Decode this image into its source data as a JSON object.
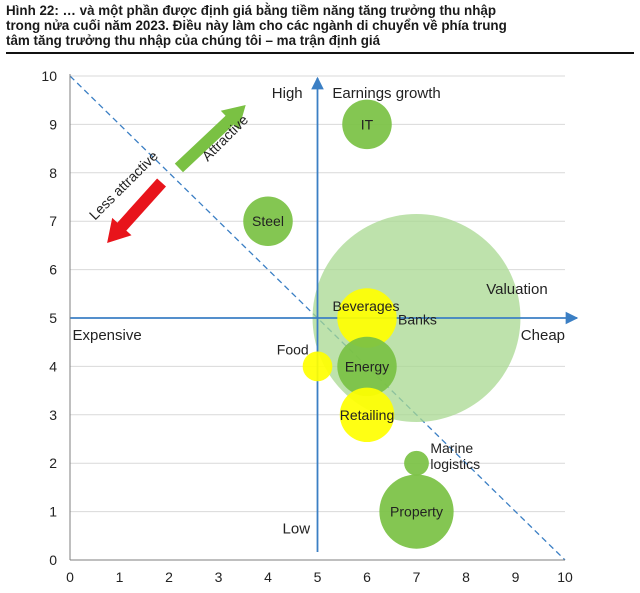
{
  "figure": {
    "title_lines": [
      "Hình 22: … và một phần được định giá bằng tiềm năng tăng trưởng thu nhập",
      "trong nửa cuối năm 2023. Điều này làm cho các ngành di chuyển về phía trung",
      "tâm tăng trưởng thu nhập của chúng tôi – ma trận định giá"
    ]
  },
  "chart_data": {
    "type": "scatter",
    "subtype": "bubble",
    "xlim": [
      0,
      10
    ],
    "ylim": [
      0,
      10
    ],
    "x_ticks": [
      0,
      1,
      2,
      3,
      4,
      5,
      6,
      7,
      8,
      9,
      10
    ],
    "y_ticks": [
      0,
      1,
      2,
      3,
      4,
      5,
      6,
      7,
      8,
      9,
      10
    ],
    "grid": "horizontal",
    "quadrant_axes": {
      "x": 5,
      "y": 5
    },
    "diagonal": {
      "from": [
        0,
        10
      ],
      "to": [
        10,
        0
      ],
      "style": "dashed"
    },
    "axis_labels": {
      "high": "High",
      "earnings_growth": "Earnings growth",
      "low": "Low",
      "expensive": "Expensive",
      "cheap": "Cheap",
      "valuation": "Valuation"
    },
    "arrows": [
      {
        "label": "Attractive",
        "direction": "up-right",
        "color": "#7ac143"
      },
      {
        "label": "Less attractive",
        "direction": "down-left",
        "color": "#e8141b"
      }
    ],
    "colors": {
      "green": "#7ac143",
      "yellow": "#ffff00",
      "pale_green": "#a8d890",
      "axis_blue": "#3b7fc4",
      "grid": "#d9d9d9"
    },
    "bubbles": [
      {
        "label": "IT",
        "x": 6.0,
        "y": 9.0,
        "size": 1.0,
        "color": "green"
      },
      {
        "label": "Steel",
        "x": 4.0,
        "y": 7.0,
        "size": 1.0,
        "color": "green"
      },
      {
        "label": "Banks",
        "x": 7.0,
        "y": 5.0,
        "size": 4.2,
        "color": "pale_green"
      },
      {
        "label": "Beverages",
        "x": 6.0,
        "y": 5.0,
        "size": 1.2,
        "color": "yellow"
      },
      {
        "label": "Food",
        "x": 5.0,
        "y": 4.0,
        "size": 0.6,
        "color": "yellow"
      },
      {
        "label": "Energy",
        "x": 6.0,
        "y": 4.0,
        "size": 1.2,
        "color": "green"
      },
      {
        "label": "Retailing",
        "x": 6.0,
        "y": 3.0,
        "size": 1.1,
        "color": "yellow"
      },
      {
        "label": "Marine\nlogistics",
        "x": 7.0,
        "y": 2.0,
        "size": 0.5,
        "color": "green"
      },
      {
        "label": "Property",
        "x": 7.0,
        "y": 1.0,
        "size": 1.5,
        "color": "green"
      }
    ]
  }
}
